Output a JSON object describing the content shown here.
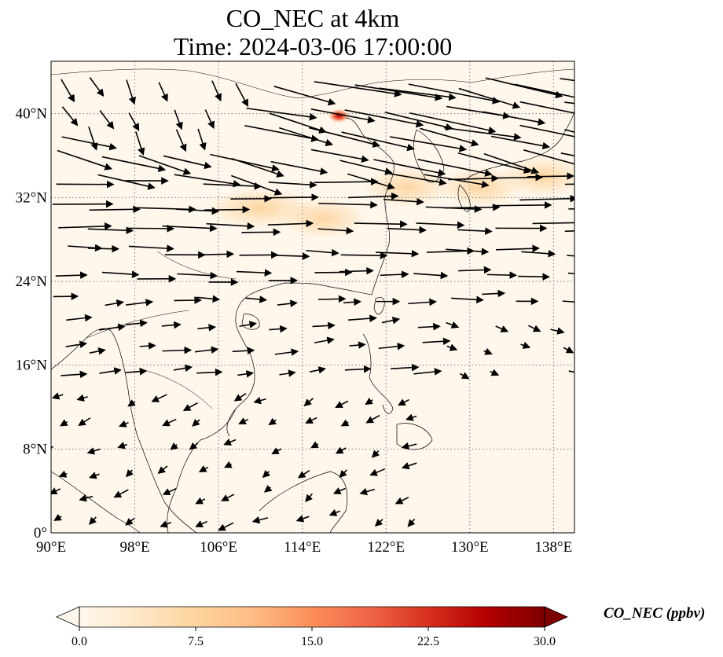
{
  "title_line1": "CO_NEC at 4km",
  "title_line2": "Time: 2024-03-06 17:00:00",
  "colorbar_label": "CO_NEC (ppbv)",
  "colors": {
    "cmap": [
      "#fff7ec",
      "#fee8c8",
      "#fdd49e",
      "#fdbb84",
      "#fc8d59",
      "#ef6548",
      "#d7301f",
      "#b30000",
      "#7f0000"
    ],
    "land_outline": "#000000",
    "grid": "#7a7a7a",
    "wind_arrow": "#000000"
  },
  "chart_data": {
    "type": "map",
    "projection": "PlateCarree",
    "lon_range": [
      90,
      140
    ],
    "lat_range": [
      0,
      45
    ],
    "x_ticks": [
      90,
      98,
      106,
      114,
      122,
      130,
      138
    ],
    "x_tick_labels": [
      "90°E",
      "98°E",
      "106°E",
      "114°E",
      "122°E",
      "130°E",
      "138°E"
    ],
    "y_ticks": [
      0,
      8,
      16,
      24,
      32,
      40
    ],
    "y_tick_labels": [
      "0°",
      "8°N",
      "16°N",
      "24°N",
      "32°N",
      "40°N"
    ],
    "gridlines": "dotted",
    "colorbar": {
      "min": 0.0,
      "max": 30.0,
      "ticks": [
        0.0,
        7.5,
        15.0,
        22.5,
        30.0
      ],
      "tick_labels": [
        "0.0",
        "7.5",
        "15.0",
        "22.5",
        "30.0"
      ],
      "extend": "both",
      "orientation": "horizontal"
    },
    "field_features": [
      {
        "name": "central-china-plume",
        "lon": 110,
        "lat": 31,
        "value": 7
      },
      {
        "name": "yangtze-plume",
        "lon": 116,
        "lat": 30,
        "value": 6
      },
      {
        "name": "east-sea-plume",
        "lon": 124,
        "lat": 33,
        "value": 6
      },
      {
        "name": "korea-japan-plume",
        "lon": 131,
        "lat": 33,
        "value": 7
      },
      {
        "name": "pacific-plume",
        "lon": 137,
        "lat": 34,
        "value": 6
      },
      {
        "name": "beijing-tianjin-hotspot",
        "lon": 117.5,
        "lat": 39.8,
        "value": 24
      }
    ],
    "wind_vectors_description": "strong westerly flow north of ~22°N with north-westerly components over northern China; weak north-easterly flow over the South China Sea and Indochina"
  }
}
